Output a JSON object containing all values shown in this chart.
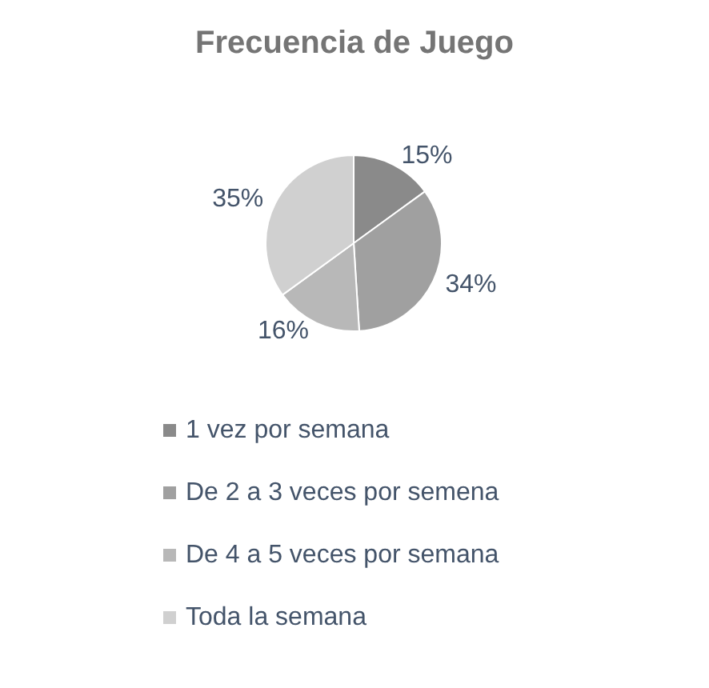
{
  "chart_data": {
    "type": "pie",
    "title": "Frecuencia de Juego",
    "categories": [
      "1 vez por semana",
      "De 2 a 3 veces por semena",
      "De 4 a 5 veces por semana",
      "Toda la semana"
    ],
    "values": [
      15,
      34,
      16,
      35
    ],
    "value_labels": [
      "15%",
      "34%",
      "16%",
      "35%"
    ],
    "colors": [
      "#8a8a8a",
      "#a0a0a0",
      "#b8b8b8",
      "#d0d0d0"
    ],
    "legend": "bottom"
  }
}
